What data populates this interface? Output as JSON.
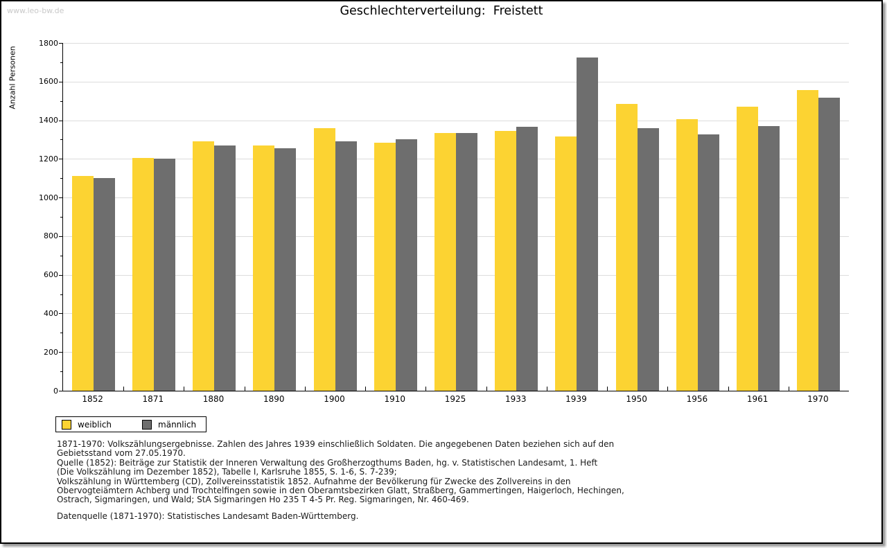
{
  "watermark": "www.leo-bw.de",
  "header": {
    "title": "Geschlechterverteilung:  Freistett"
  },
  "chart_data": {
    "type": "bar",
    "title": "Geschlechterverteilung: Freistett",
    "xlabel": "",
    "ylabel": "Anzahl Personen",
    "categories": [
      "1852",
      "1871",
      "1880",
      "1890",
      "1900",
      "1910",
      "1925",
      "1933",
      "1939",
      "1950",
      "1956",
      "1961",
      "1970"
    ],
    "series": [
      {
        "name": "weiblich",
        "color": "#FCD332",
        "values": [
          1110,
          1205,
          1290,
          1270,
          1360,
          1285,
          1335,
          1345,
          1315,
          1485,
          1405,
          1470,
          1555
        ]
      },
      {
        "name": "männlich",
        "color": "#6E6E6E",
        "values": [
          1100,
          1200,
          1270,
          1255,
          1290,
          1300,
          1335,
          1365,
          1725,
          1360,
          1325,
          1370,
          1515
        ]
      }
    ],
    "ylim": [
      0,
      1800
    ],
    "ytick_step": 200,
    "yminor_step": 100,
    "grid": true,
    "gridline_color": "#dcdcdc",
    "legend_position": "bottom-left"
  },
  "footer": {
    "lines": [
      "1871-1970: Volkszählungsergebnisse. Zahlen des Jahres 1939 einschließlich Soldaten. Die angegebenen Daten beziehen sich auf den",
      "Gebietsstand vom 27.05.1970.",
      "Quelle (1852): Beiträge zur Statistik der Inneren Verwaltung des Großherzogthums Baden, hg. v. Statistischen Landesamt, 1. Heft",
      "(Die Volkszählung im Dezember 1852), Tabelle I, Karlsruhe 1855, S. 1-6, S. 7-239;",
      "Volkszählung in Württemberg (CD), Zollvereinsstatistik 1852. Aufnahme der Bevölkerung für Zwecke des Zollvereins in den",
      "Obervogteiämtern Achberg und Trochtelfingen sowie in den Oberamtsbezirken Glatt, Straßberg, Gammertingen, Haigerloch, Hechingen,",
      "Ostrach, Sigmaringen, und Wald; StA Sigmaringen Ho 235 T 4-5 Pr. Reg. Sigmaringen, Nr. 460-469."
    ],
    "datasource": "Datenquelle (1871-1970): Statistisches Landesamt Baden-Württemberg."
  }
}
